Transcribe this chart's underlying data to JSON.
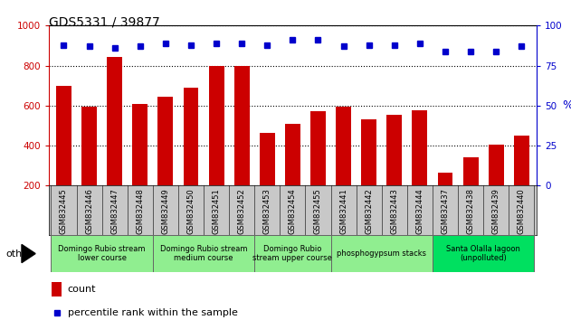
{
  "title": "GDS5331 / 39877",
  "samples": [
    "GSM832445",
    "GSM832446",
    "GSM832447",
    "GSM832448",
    "GSM832449",
    "GSM832450",
    "GSM832451",
    "GSM832452",
    "GSM832453",
    "GSM832454",
    "GSM832455",
    "GSM832441",
    "GSM832442",
    "GSM832443",
    "GSM832444",
    "GSM832437",
    "GSM832438",
    "GSM832439",
    "GSM832440"
  ],
  "counts": [
    700,
    595,
    845,
    610,
    645,
    690,
    800,
    800,
    465,
    510,
    570,
    595,
    530,
    555,
    575,
    265,
    340,
    405,
    450
  ],
  "percentiles": [
    88,
    87,
    86,
    87,
    89,
    88,
    89,
    89,
    88,
    91,
    91,
    87,
    88,
    88,
    89,
    84,
    84,
    84,
    87
  ],
  "groups": [
    {
      "label": "Domingo Rubio stream\nlower course",
      "start": 0,
      "end": 4,
      "color": "#90ee90"
    },
    {
      "label": "Domingo Rubio stream\nmedium course",
      "start": 4,
      "end": 8,
      "color": "#90ee90"
    },
    {
      "label": "Domingo Rubio\nstream upper course",
      "start": 8,
      "end": 11,
      "color": "#90ee90"
    },
    {
      "label": "phosphogypsum stacks",
      "start": 11,
      "end": 15,
      "color": "#90ee90"
    },
    {
      "label": "Santa Olalla lagoon\n(unpolluted)",
      "start": 15,
      "end": 19,
      "color": "#00e060"
    }
  ],
  "bar_color": "#cc0000",
  "dot_color": "#0000cc",
  "ylim_left": [
    200,
    1000
  ],
  "ylim_right": [
    0,
    100
  ],
  "yticks_left": [
    200,
    400,
    600,
    800,
    1000
  ],
  "yticks_right": [
    0,
    25,
    50,
    75,
    100
  ],
  "tick_bg_color": "#c8c8c8",
  "group_border_color": "#666666",
  "legend_count_color": "#cc0000",
  "legend_pct_color": "#0000cc",
  "fig_bg": "#ffffff"
}
